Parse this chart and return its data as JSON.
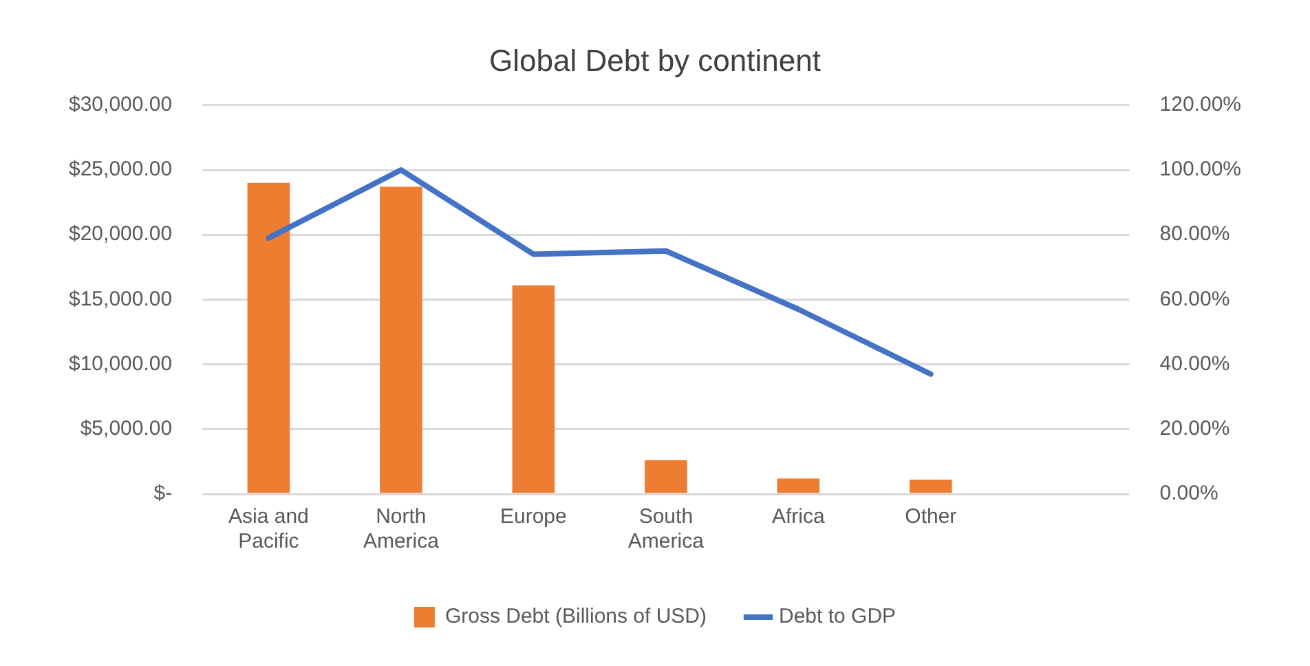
{
  "chart_data": {
    "type": "bar",
    "title": "Global Debt by continent",
    "categories": [
      "Asia and Pacific",
      "North America",
      "Europe",
      "South America",
      "Africa",
      "Other",
      null
    ],
    "series": [
      {
        "name": "Gross Debt (Billions of USD)",
        "color": "#ed7d31",
        "values": [
          24000,
          23700,
          16100,
          2600,
          1200,
          1100,
          null
        ]
      },
      {
        "name": "Debt to GDP",
        "type": "line",
        "axis": "y2",
        "color": "#4472c4",
        "values": [
          79,
          100,
          74,
          75,
          57,
          37,
          null
        ]
      }
    ],
    "ylim": [
      0,
      30000
    ],
    "yticks": [
      {
        "value": 0,
        "label": "$-"
      },
      {
        "value": 5000,
        "label": "$5,000.00"
      },
      {
        "value": 10000,
        "label": "$10,000.00"
      },
      {
        "value": 15000,
        "label": "$15,000.00"
      },
      {
        "value": 20000,
        "label": "$20,000.00"
      },
      {
        "value": 25000,
        "label": "$25,000.00"
      },
      {
        "value": 30000,
        "label": "$30,000.00"
      }
    ],
    "y2lim": [
      0,
      120
    ],
    "y2ticks": [
      {
        "value": 0,
        "label": "0.00%"
      },
      {
        "value": 20,
        "label": "20.00%"
      },
      {
        "value": 40,
        "label": "40.00%"
      },
      {
        "value": 60,
        "label": "60.00%"
      },
      {
        "value": 80,
        "label": "80.00%"
      },
      {
        "value": 100,
        "label": "100.00%"
      },
      {
        "value": 120,
        "label": "120.00%"
      }
    ],
    "grid": "y",
    "legend": "bottom",
    "marker": "none",
    "line_style": "solid"
  }
}
